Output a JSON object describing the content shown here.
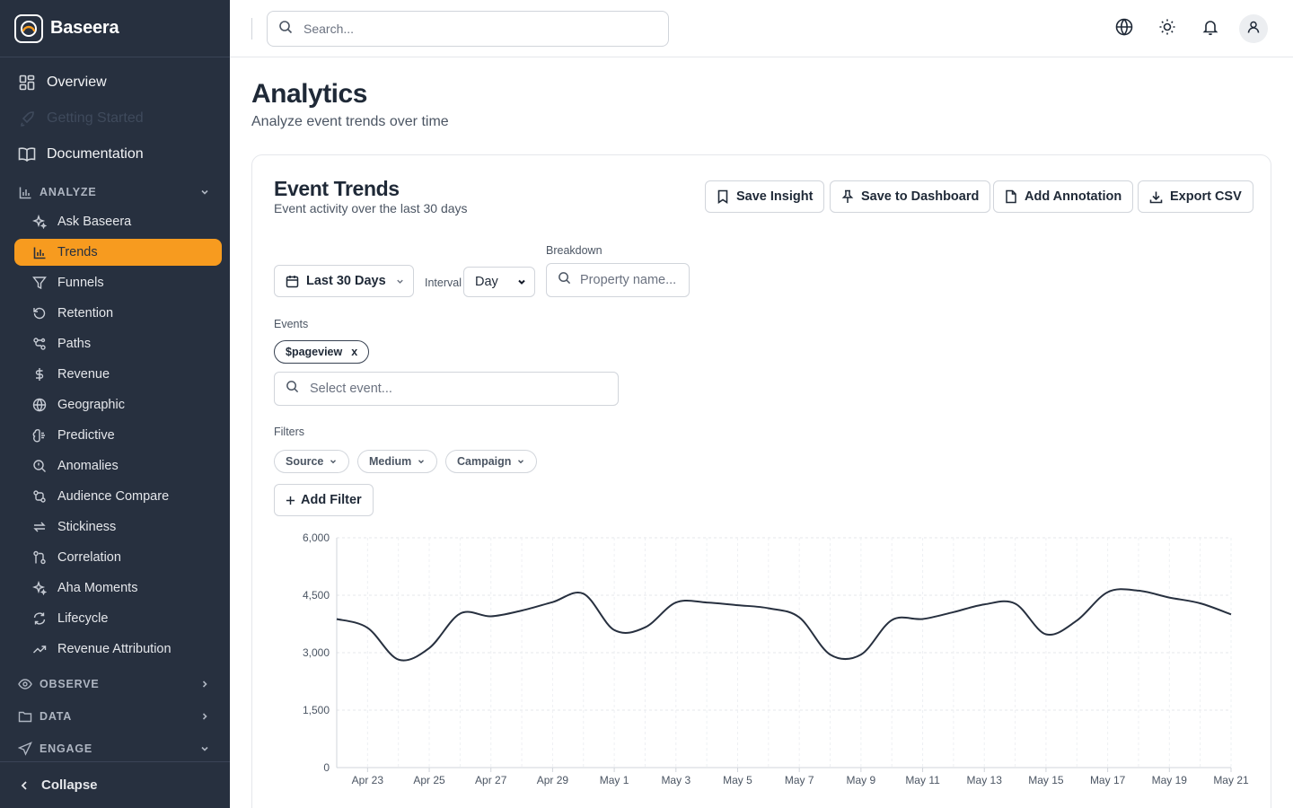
{
  "app": {
    "name": "Baseera"
  },
  "sidebar": {
    "top_items": [
      {
        "label": "Overview",
        "icon": "grid-icon"
      },
      {
        "label": "Getting Started",
        "icon": "rocket-icon"
      },
      {
        "label": "Documentation",
        "icon": "book-icon"
      }
    ],
    "sections": [
      {
        "label": "ANALYZE",
        "icon": "bar-chart-icon",
        "expanded": true
      },
      {
        "label": "OBSERVE",
        "icon": "eye-icon",
        "expanded": false
      },
      {
        "label": "DATA",
        "icon": "folder-icon",
        "expanded": false
      },
      {
        "label": "ENGAGE",
        "icon": "send-icon",
        "expanded": true
      }
    ],
    "analyze_items": [
      {
        "label": "Ask Baseera",
        "icon": "sparkles-icon"
      },
      {
        "label": "Trends",
        "icon": "bar-chart-icon",
        "active": true
      },
      {
        "label": "Funnels",
        "icon": "filter-icon"
      },
      {
        "label": "Retention",
        "icon": "rotate-icon"
      },
      {
        "label": "Paths",
        "icon": "route-icon"
      },
      {
        "label": "Revenue",
        "icon": "dollar-icon"
      },
      {
        "label": "Geographic",
        "icon": "globe-icon"
      },
      {
        "label": "Predictive",
        "icon": "brain-icon"
      },
      {
        "label": "Anomalies",
        "icon": "search-alert-icon"
      },
      {
        "label": "Audience Compare",
        "icon": "compare-icon"
      },
      {
        "label": "Stickiness",
        "icon": "repeat-icon"
      },
      {
        "label": "Correlation",
        "icon": "git-compare-icon"
      },
      {
        "label": "Aha Moments",
        "icon": "sparkles-icon"
      },
      {
        "label": "Lifecycle",
        "icon": "refresh-icon"
      },
      {
        "label": "Revenue Attribution",
        "icon": "trending-up-icon"
      }
    ],
    "collapse_label": "Collapse"
  },
  "topbar": {
    "search_placeholder": "Search..."
  },
  "page": {
    "title": "Analytics",
    "subtitle": "Analyze event trends over time"
  },
  "card": {
    "title": "Event Trends",
    "subtitle": "Event activity over the last 30 days",
    "actions": {
      "save_insight": "Save Insight",
      "save_dashboard": "Save to Dashboard",
      "add_annotation": "Add Annotation",
      "export_csv": "Export CSV"
    },
    "date_range": "Last 30 Days",
    "interval_label": "Interval",
    "interval_value": "Day",
    "breakdown_label": "Breakdown",
    "breakdown_placeholder": "Property name...",
    "events_label": "Events",
    "event_chip": "$pageview",
    "event_chip_remove": "x",
    "event_placeholder": "Select event...",
    "filters_label": "Filters",
    "filter_pills": [
      "Source",
      "Medium",
      "Campaign"
    ],
    "add_filter": "Add Filter"
  },
  "chart_data": {
    "type": "line",
    "ylim": [
      0,
      6000
    ],
    "yticks": [
      "6,000",
      "4,500",
      "3,000",
      "1,500",
      "0"
    ],
    "ytick_values": [
      6000,
      4500,
      3000,
      1500,
      0
    ],
    "x": [
      "Apr 22",
      "Apr 23",
      "Apr 24",
      "Apr 25",
      "Apr 26",
      "Apr 27",
      "Apr 28",
      "Apr 29",
      "Apr 30",
      "May 1",
      "May 2",
      "May 3",
      "May 4",
      "May 5",
      "May 6",
      "May 7",
      "May 8",
      "May 9",
      "May 10",
      "May 11",
      "May 12",
      "May 13",
      "May 14",
      "May 15",
      "May 16",
      "May 17",
      "May 18",
      "May 19",
      "May 20",
      "May 21"
    ],
    "xtick_labels": [
      "Apr 23",
      "Apr 25",
      "Apr 27",
      "Apr 29",
      "May 1",
      "May 3",
      "May 5",
      "May 7",
      "May 9",
      "May 11",
      "May 13",
      "May 15",
      "May 17",
      "May 19",
      "May 21"
    ],
    "series": [
      {
        "values": [
          3880,
          3650,
          2820,
          3120,
          4020,
          3950,
          4100,
          4320,
          4540,
          3590,
          3660,
          4310,
          4310,
          4240,
          4160,
          3920,
          2950,
          2950,
          3850,
          3880,
          4060,
          4260,
          4280,
          3480,
          3840,
          4580,
          4620,
          4440,
          4290,
          4000
        ]
      }
    ],
    "line_color": "#27303f",
    "grid": true
  }
}
